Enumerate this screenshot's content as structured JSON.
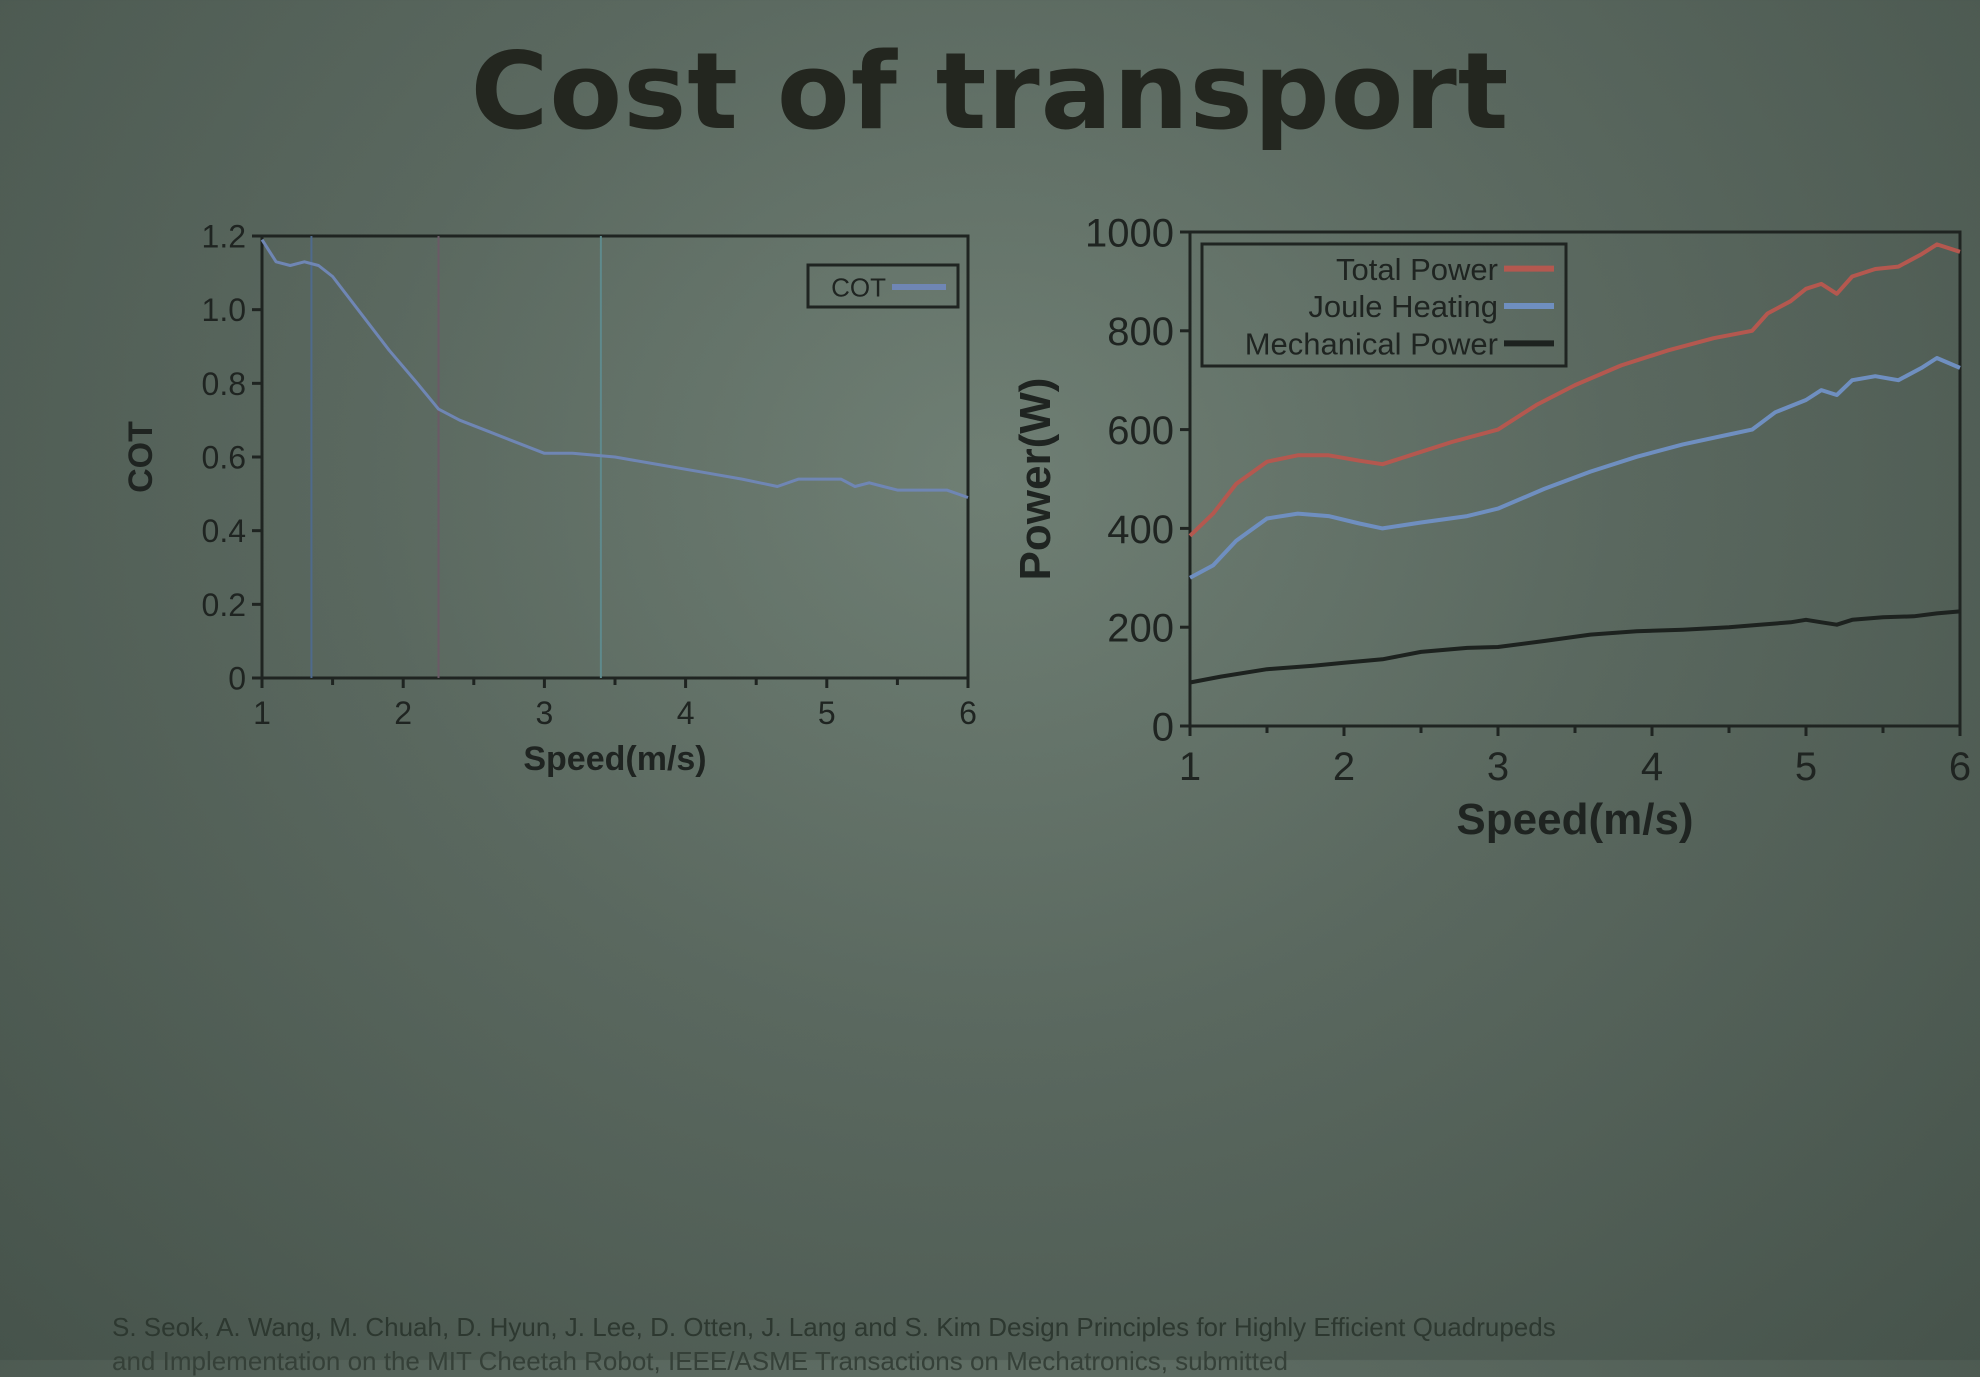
{
  "title": "Cost of transport",
  "citation": {
    "line1": "S. Seok, A. Wang, M. Chuah, D. Hyun, J. Lee, D. Otten, J. Lang and S. Kim Design Principles for Highly Efficient Quadrupeds",
    "line2": "and Implementation on the MIT Cheetah Robot, IEEE/ASME Transactions on Mechatronics, submitted"
  },
  "chart_data": [
    {
      "type": "line",
      "title": "",
      "xlabel": "Speed(m/s)",
      "ylabel": "COT",
      "xlim": [
        1,
        6
      ],
      "ylim": [
        0,
        1.2
      ],
      "xticks": [
        "1",
        "2",
        "3",
        "4",
        "5",
        "6"
      ],
      "yticks": [
        "0",
        "0.2",
        "0.4",
        "0.6",
        "0.8",
        "1.0",
        "1.2"
      ],
      "legend_position": "top-right",
      "grid": false,
      "vertical_markers": [
        {
          "x": 1.35,
          "color": "#4f6a8c"
        },
        {
          "x": 2.25,
          "color": "#6a5a66"
        },
        {
          "x": 3.4,
          "color": "#5f8a8c"
        }
      ],
      "series": [
        {
          "name": "COT",
          "color": "#6f86b4",
          "points": [
            [
              1.0,
              1.19
            ],
            [
              1.1,
              1.13
            ],
            [
              1.2,
              1.12
            ],
            [
              1.3,
              1.13
            ],
            [
              1.4,
              1.12
            ],
            [
              1.5,
              1.09
            ],
            [
              1.7,
              0.99
            ],
            [
              1.9,
              0.89
            ],
            [
              2.1,
              0.8
            ],
            [
              2.25,
              0.73
            ],
            [
              2.4,
              0.7
            ],
            [
              2.6,
              0.67
            ],
            [
              2.8,
              0.64
            ],
            [
              3.0,
              0.61
            ],
            [
              3.2,
              0.61
            ],
            [
              3.5,
              0.6
            ],
            [
              3.8,
              0.58
            ],
            [
              4.1,
              0.56
            ],
            [
              4.4,
              0.54
            ],
            [
              4.65,
              0.52
            ],
            [
              4.8,
              0.54
            ],
            [
              5.0,
              0.54
            ],
            [
              5.1,
              0.54
            ],
            [
              5.2,
              0.52
            ],
            [
              5.3,
              0.53
            ],
            [
              5.4,
              0.52
            ],
            [
              5.5,
              0.51
            ],
            [
              5.7,
              0.51
            ],
            [
              5.85,
              0.51
            ],
            [
              6.0,
              0.49
            ]
          ]
        }
      ]
    },
    {
      "type": "line",
      "title": "",
      "xlabel": "Speed(m/s)",
      "ylabel": "Power(W)",
      "xlim": [
        1,
        6
      ],
      "ylim": [
        0,
        1000
      ],
      "xticks": [
        "1",
        "2",
        "3",
        "4",
        "5",
        "6"
      ],
      "yticks": [
        "0",
        "200",
        "400",
        "600",
        "800",
        "1000"
      ],
      "legend_position": "top-left",
      "grid": false,
      "series": [
        {
          "name": "Total Power",
          "color": "#b4584f",
          "points": [
            [
              1.0,
              385
            ],
            [
              1.15,
              430
            ],
            [
              1.3,
              490
            ],
            [
              1.5,
              535
            ],
            [
              1.7,
              548
            ],
            [
              1.9,
              548
            ],
            [
              2.1,
              537
            ],
            [
              2.25,
              530
            ],
            [
              2.45,
              550
            ],
            [
              2.7,
              575
            ],
            [
              3.0,
              600
            ],
            [
              3.25,
              650
            ],
            [
              3.5,
              690
            ],
            [
              3.8,
              730
            ],
            [
              4.1,
              760
            ],
            [
              4.4,
              785
            ],
            [
              4.65,
              800
            ],
            [
              4.75,
              835
            ],
            [
              4.9,
              860
            ],
            [
              5.0,
              885
            ],
            [
              5.1,
              895
            ],
            [
              5.2,
              875
            ],
            [
              5.3,
              910
            ],
            [
              5.45,
              925
            ],
            [
              5.6,
              930
            ],
            [
              5.75,
              955
            ],
            [
              5.85,
              975
            ],
            [
              6.0,
              960
            ]
          ]
        },
        {
          "name": "Joule Heating",
          "color": "#6f8fc0",
          "points": [
            [
              1.0,
              300
            ],
            [
              1.15,
              325
            ],
            [
              1.3,
              375
            ],
            [
              1.5,
              420
            ],
            [
              1.7,
              430
            ],
            [
              1.9,
              425
            ],
            [
              2.1,
              410
            ],
            [
              2.25,
              400
            ],
            [
              2.5,
              412
            ],
            [
              2.8,
              425
            ],
            [
              3.0,
              440
            ],
            [
              3.3,
              480
            ],
            [
              3.6,
              515
            ],
            [
              3.9,
              545
            ],
            [
              4.2,
              570
            ],
            [
              4.5,
              590
            ],
            [
              4.65,
              600
            ],
            [
              4.8,
              635
            ],
            [
              5.0,
              660
            ],
            [
              5.1,
              680
            ],
            [
              5.2,
              670
            ],
            [
              5.3,
              700
            ],
            [
              5.45,
              708
            ],
            [
              5.6,
              700
            ],
            [
              5.75,
              725
            ],
            [
              5.85,
              745
            ],
            [
              6.0,
              725
            ]
          ]
        },
        {
          "name": "Mechanical Power",
          "color": "#1d221f",
          "points": [
            [
              1.0,
              88
            ],
            [
              1.2,
              100
            ],
            [
              1.5,
              115
            ],
            [
              1.8,
              122
            ],
            [
              2.0,
              128
            ],
            [
              2.25,
              135
            ],
            [
              2.5,
              150
            ],
            [
              2.8,
              158
            ],
            [
              3.0,
              160
            ],
            [
              3.3,
              172
            ],
            [
              3.6,
              185
            ],
            [
              3.9,
              192
            ],
            [
              4.2,
              195
            ],
            [
              4.5,
              200
            ],
            [
              4.7,
              205
            ],
            [
              4.9,
              210
            ],
            [
              5.0,
              215
            ],
            [
              5.1,
              210
            ],
            [
              5.2,
              205
            ],
            [
              5.3,
              215
            ],
            [
              5.5,
              220
            ],
            [
              5.7,
              222
            ],
            [
              5.85,
              228
            ],
            [
              6.0,
              232
            ]
          ]
        }
      ]
    }
  ]
}
